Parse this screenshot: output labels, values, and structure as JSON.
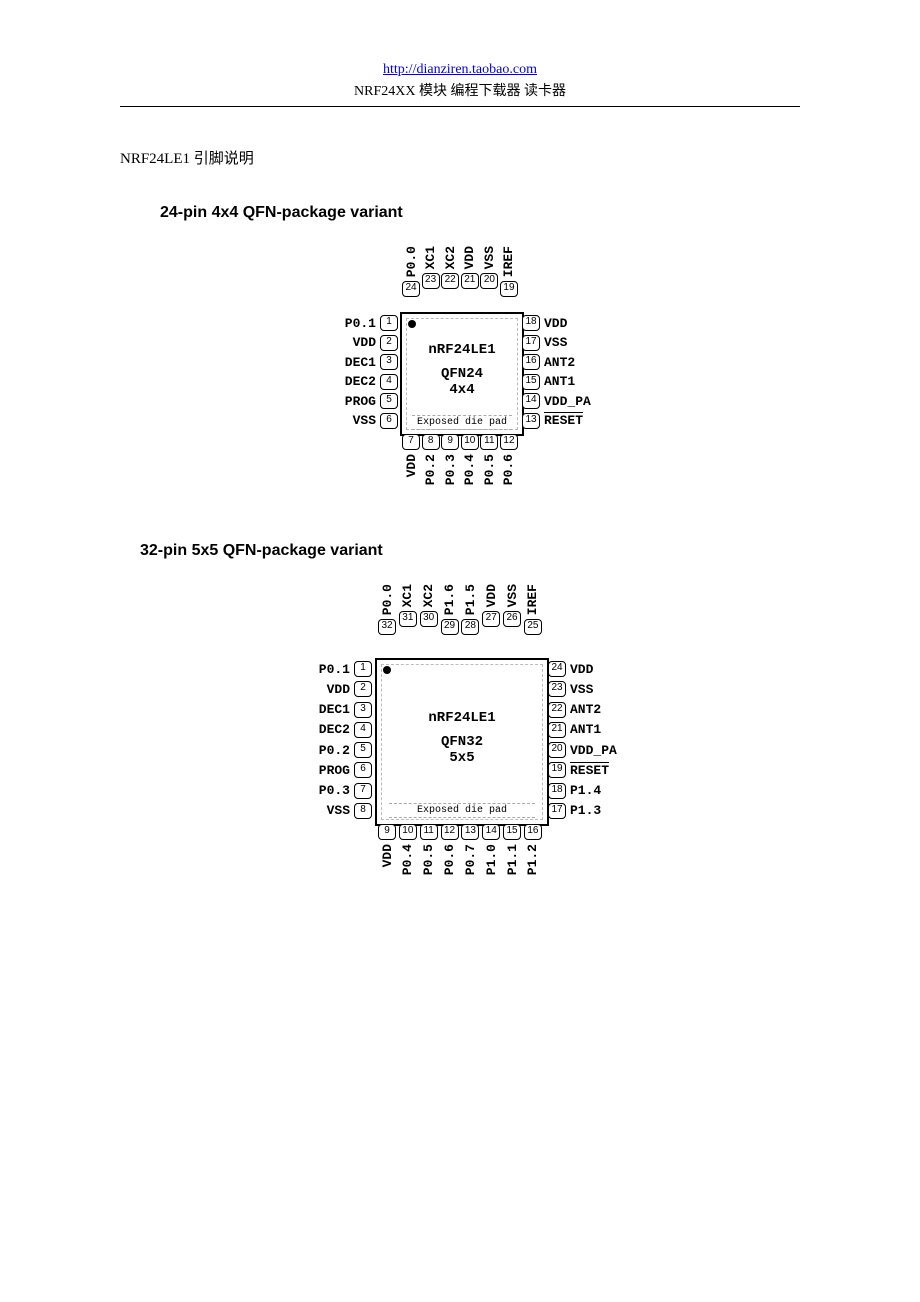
{
  "header": {
    "url": "http://dianziren.taobao.com",
    "subtitle": "NRF24XX 模块 编程下载器 读卡器"
  },
  "section_title": "NRF24LE1 引脚说明",
  "qfn24": {
    "title": "24-pin 4x4 QFN-package variant",
    "chip_line1": "nRF24LE1",
    "chip_line2": "QFN24",
    "chip_line3": "4x4",
    "diepad": "Exposed die pad",
    "top_nums": [
      "24",
      "23",
      "22",
      "21",
      "20",
      "19"
    ],
    "top_labels": [
      "P0.0",
      "XC1",
      "XC2",
      "VDD",
      "VSS",
      "IREF"
    ],
    "left": [
      {
        "num": "1",
        "label": "P0.1"
      },
      {
        "num": "2",
        "label": "VDD"
      },
      {
        "num": "3",
        "label": "DEC1"
      },
      {
        "num": "4",
        "label": "DEC2"
      },
      {
        "num": "5",
        "label": "PROG"
      },
      {
        "num": "6",
        "label": "VSS"
      }
    ],
    "right": [
      {
        "num": "18",
        "label": "VDD"
      },
      {
        "num": "17",
        "label": "VSS"
      },
      {
        "num": "16",
        "label": "ANT2"
      },
      {
        "num": "15",
        "label": "ANT1"
      },
      {
        "num": "14",
        "label": "VDD_PA"
      },
      {
        "num": "13",
        "label": "RESET",
        "overline": true
      }
    ],
    "bottom_nums": [
      "7",
      "8",
      "9",
      "10",
      "11",
      "12"
    ],
    "bottom_labels": [
      "VDD",
      "P0.2",
      "P0.3",
      "P0.4",
      "P0.5",
      "P0.6"
    ]
  },
  "qfn32": {
    "title": "32-pin 5x5 QFN-package variant",
    "chip_line1": "nRF24LE1",
    "chip_line2": "QFN32",
    "chip_line3": "5x5",
    "diepad": "Exposed die pad",
    "top_nums": [
      "32",
      "31",
      "30",
      "29",
      "28",
      "27",
      "26",
      "25"
    ],
    "top_labels": [
      "P0.0",
      "XC1",
      "XC2",
      "P1.6",
      "P1.5",
      "VDD",
      "VSS",
      "IREF"
    ],
    "left": [
      {
        "num": "1",
        "label": "P0.1"
      },
      {
        "num": "2",
        "label": "VDD"
      },
      {
        "num": "3",
        "label": "DEC1"
      },
      {
        "num": "4",
        "label": "DEC2"
      },
      {
        "num": "5",
        "label": "P0.2"
      },
      {
        "num": "6",
        "label": "PROG"
      },
      {
        "num": "7",
        "label": "P0.3"
      },
      {
        "num": "8",
        "label": "VSS"
      }
    ],
    "right": [
      {
        "num": "24",
        "label": "VDD"
      },
      {
        "num": "23",
        "label": "VSS"
      },
      {
        "num": "22",
        "label": "ANT2"
      },
      {
        "num": "21",
        "label": "ANT1"
      },
      {
        "num": "20",
        "label": "VDD_PA"
      },
      {
        "num": "19",
        "label": "RESET",
        "overline": true
      },
      {
        "num": "18",
        "label": "P1.4"
      },
      {
        "num": "17",
        "label": "P1.3"
      }
    ],
    "bottom_nums": [
      "9",
      "10",
      "11",
      "12",
      "13",
      "14",
      "15",
      "16"
    ],
    "bottom_labels": [
      "VDD",
      "P0.4",
      "P0.5",
      "P0.6",
      "P0.7",
      "P1.0",
      "P1.1",
      "P1.2"
    ]
  }
}
